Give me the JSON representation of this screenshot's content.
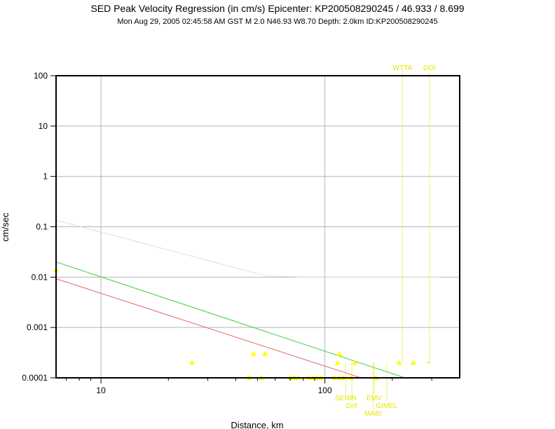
{
  "header": {
    "title": "SED Peak Velocity Regression (in cm/s) Epicenter: KP200508290245 / 46.933 / 8.699",
    "subtitle": "Mon Aug 29, 2005 02:45:58 AM GST   M 2.0   N46.93 W8.70   Depth: 2.0km   ID:KP200508290245"
  },
  "colors": {
    "points": "#ffff00",
    "labels": "#e6e600",
    "grid": "#b4b4b4",
    "regression_red": "#e06666",
    "regression_green": "#44cc44",
    "regression_faint": "#c8eec8"
  },
  "chart_data": {
    "type": "scatter",
    "title": "SED Peak Velocity Regression (in cm/s) Epicenter: KP200508290245 / 46.933 / 8.699",
    "xlabel": "Distance, km",
    "ylabel": "cm/sec",
    "x_scale": "log",
    "y_scale": "log",
    "xlim": [
      6.3,
      400
    ],
    "ylim": [
      0.0001,
      100
    ],
    "grid": true,
    "x_ticks": [
      {
        "value": 10,
        "label": "10"
      },
      {
        "value": 100,
        "label": "100"
      }
    ],
    "y_ticks": [
      {
        "value": 100,
        "label": "100"
      },
      {
        "value": 10,
        "label": "10"
      },
      {
        "value": 1,
        "label": "1"
      },
      {
        "value": 0.1,
        "label": "0.1"
      },
      {
        "value": 0.01,
        "label": "0.01"
      },
      {
        "value": 0.001,
        "label": "0.001"
      },
      {
        "value": 0.0001,
        "label": "0.0001"
      }
    ],
    "points": [
      {
        "x": 6.3,
        "y": 0.014
      },
      {
        "x": 25.5,
        "y": 0.0002
      },
      {
        "x": 48,
        "y": 0.0003
      },
      {
        "x": 54,
        "y": 0.0003
      },
      {
        "x": 46,
        "y": 0.0001
      },
      {
        "x": 52,
        "y": 0.0001
      },
      {
        "x": 70,
        "y": 0.0001
      },
      {
        "x": 73,
        "y": 0.0001
      },
      {
        "x": 76,
        "y": 0.0001
      },
      {
        "x": 85,
        "y": 0.0001
      },
      {
        "x": 88,
        "y": 0.0001
      },
      {
        "x": 92,
        "y": 0.0001
      },
      {
        "x": 96,
        "y": 0.0001
      },
      {
        "x": 110,
        "y": 0.0001
      },
      {
        "x": 116,
        "y": 0.0001
      },
      {
        "x": 121,
        "y": 0.0001
      },
      {
        "x": 131,
        "y": 0.0001
      },
      {
        "x": 169,
        "y": 0.0001
      },
      {
        "x": 114,
        "y": 0.0002
      },
      {
        "x": 116,
        "y": 0.0003
      },
      {
        "x": 136,
        "y": 0.0002
      },
      {
        "x": 215,
        "y": 0.0002
      },
      {
        "x": 248,
        "y": 0.0002
      }
    ],
    "regression_lines": [
      {
        "color": "red",
        "points": [
          [
            6.3,
            0.0093
          ],
          [
            145,
            0.0001
          ]
        ]
      },
      {
        "color": "green",
        "points": [
          [
            6.3,
            0.02
          ],
          [
            228,
            0.0001
          ]
        ]
      },
      {
        "color": "faint-green",
        "points": [
          [
            6.3,
            0.135
          ],
          [
            55,
            0.0105
          ],
          [
            80,
            0.01
          ],
          [
            330,
            0.01
          ]
        ]
      }
    ],
    "annotations_top": [
      {
        "label": "WTTA",
        "x": 222
      },
      {
        "label": "DOI",
        "x": 293
      }
    ],
    "annotations_bottom": [
      {
        "label": "SENIN",
        "x": 124,
        "row": 0
      },
      {
        "label": "EMV",
        "x": 166,
        "row": 0
      },
      {
        "label": "DIX",
        "x": 132,
        "row": 1
      },
      {
        "label": "GIMEL",
        "x": 189,
        "row": 1
      },
      {
        "label": "MABI",
        "x": 164,
        "row": 2
      }
    ],
    "marker_dash": {
      "x": 290,
      "y": 0.0002
    }
  }
}
